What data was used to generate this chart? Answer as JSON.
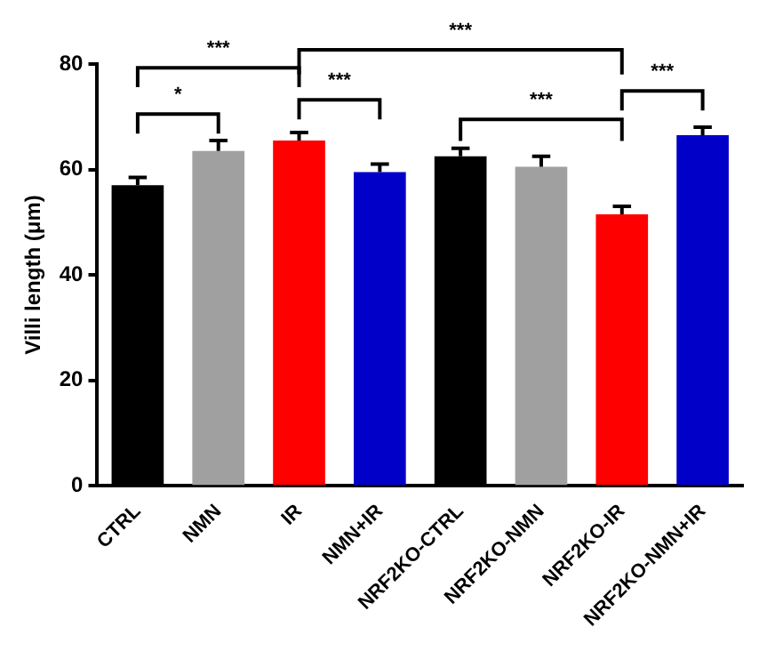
{
  "chart_data": {
    "type": "bar",
    "ylabel": "Villi length (μm)",
    "categories": [
      "CTRL",
      "NMN",
      "IR",
      "NMN+IR",
      "NRF2KO-CTRL",
      "NRF2KO-NMN",
      "NRF2KO-IR",
      "NRF2KO-NMN+IR"
    ],
    "values": [
      57,
      63.5,
      65.5,
      59.5,
      62.5,
      60.5,
      51.5,
      66.5
    ],
    "colors": [
      "#000000",
      "#a0a0a0",
      "#ff0000",
      "#0000c8",
      "#000000",
      "#a0a0a0",
      "#ff0000",
      "#0000c8"
    ],
    "errors": [
      1.5,
      2,
      1.5,
      1.5,
      1.5,
      2,
      1.5,
      1.5
    ],
    "ylim": [
      0,
      80
    ],
    "yticks": [
      0,
      20,
      40,
      60,
      80
    ],
    "grid": false,
    "legend": false,
    "annotations": [
      "***",
      "*",
      "***",
      "***",
      "***",
      "***"
    ]
  }
}
